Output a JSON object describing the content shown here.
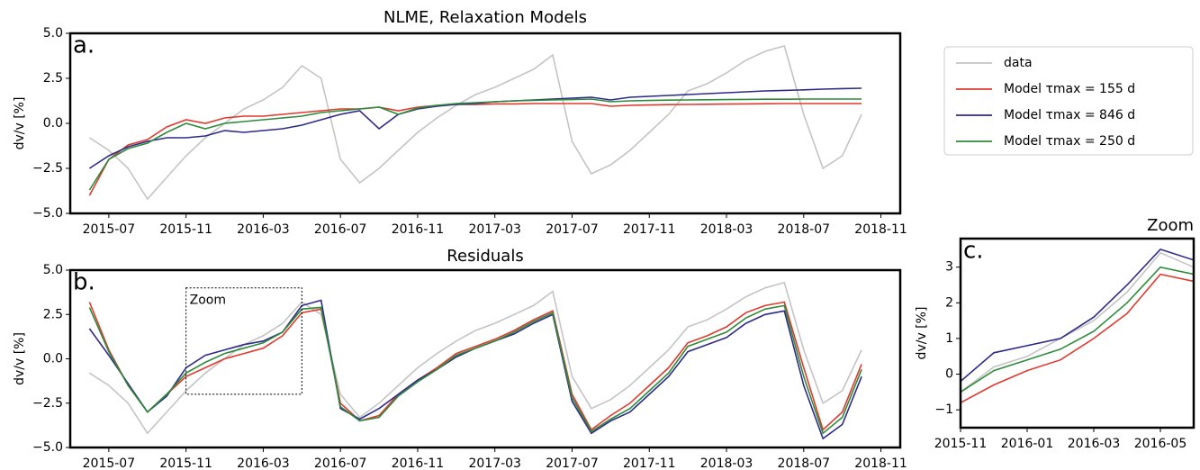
{
  "chart_data": [
    {
      "type": "line",
      "title": "NLME, Relaxation Models",
      "panel_label": "a.",
      "ylabel": "dv/v [%]",
      "x": [
        "2015-06",
        "2015-07",
        "2015-08",
        "2015-09",
        "2015-10",
        "2015-11",
        "2015-12",
        "2016-01",
        "2016-02",
        "2016-03",
        "2016-04",
        "2016-05",
        "2016-06",
        "2016-07",
        "2016-08",
        "2016-09",
        "2016-10",
        "2016-11",
        "2016-12",
        "2017-01",
        "2017-02",
        "2017-03",
        "2017-04",
        "2017-05",
        "2017-06",
        "2017-07",
        "2017-08",
        "2017-09",
        "2017-10",
        "2017-11",
        "2017-12",
        "2018-01",
        "2018-02",
        "2018-03",
        "2018-04",
        "2018-05",
        "2018-06",
        "2018-07",
        "2018-08",
        "2018-09",
        "2018-10"
      ],
      "series": [
        {
          "name": "data",
          "color": "#c4c4c4",
          "values": [
            -0.8,
            -1.5,
            -2.5,
            -4.2,
            -3.0,
            -1.8,
            -0.8,
            0.0,
            0.8,
            1.3,
            2.0,
            3.2,
            2.5,
            -2.0,
            -3.3,
            -2.5,
            -1.5,
            -0.5,
            0.3,
            1.0,
            1.6,
            2.0,
            2.5,
            3.0,
            3.8,
            -1.0,
            -2.8,
            -2.3,
            -1.5,
            -0.5,
            0.5,
            1.8,
            2.2,
            2.8,
            3.5,
            4.0,
            4.3,
            0.5,
            -2.5,
            -1.8,
            0.5
          ]
        },
        {
          "name": "Model τmax =  155 d",
          "color": "#e03a2f",
          "values": [
            -4.0,
            -2.0,
            -1.2,
            -0.9,
            -0.2,
            0.2,
            0.0,
            0.3,
            0.4,
            0.4,
            0.5,
            0.6,
            0.7,
            0.8,
            0.8,
            0.9,
            0.7,
            0.9,
            1.0,
            1.05,
            1.05,
            1.08,
            1.08,
            1.1,
            1.1,
            1.1,
            1.1,
            0.95,
            1.0,
            1.02,
            1.04,
            1.05,
            1.06,
            1.07,
            1.08,
            1.09,
            1.1,
            1.1,
            1.1,
            1.1,
            1.1
          ]
        },
        {
          "name": "Model τmax =  846 d",
          "color": "#2e2a8a",
          "values": [
            -2.5,
            -1.8,
            -1.3,
            -1.0,
            -0.8,
            -0.8,
            -0.7,
            -0.4,
            -0.5,
            -0.4,
            -0.3,
            -0.1,
            0.2,
            0.5,
            0.7,
            -0.3,
            0.5,
            0.8,
            0.95,
            1.05,
            1.1,
            1.2,
            1.25,
            1.3,
            1.35,
            1.4,
            1.45,
            1.3,
            1.45,
            1.5,
            1.55,
            1.6,
            1.65,
            1.7,
            1.75,
            1.8,
            1.83,
            1.86,
            1.9,
            1.93,
            1.95
          ]
        },
        {
          "name": "Model τmax =  250 d",
          "color": "#2e8b3a",
          "values": [
            -3.7,
            -2.0,
            -1.4,
            -1.1,
            -0.5,
            0.0,
            -0.3,
            0.0,
            0.1,
            0.2,
            0.3,
            0.4,
            0.6,
            0.7,
            0.8,
            0.9,
            0.5,
            0.85,
            1.0,
            1.1,
            1.15,
            1.2,
            1.25,
            1.28,
            1.3,
            1.32,
            1.35,
            1.2,
            1.25,
            1.27,
            1.29,
            1.3,
            1.31,
            1.32,
            1.33,
            1.34,
            1.34,
            1.35,
            1.35,
            1.35,
            1.35
          ]
        }
      ],
      "xlim": [
        "2015-05",
        "2018-12"
      ],
      "xticks": [
        "2015-07",
        "2015-11",
        "2016-03",
        "2016-07",
        "2016-11",
        "2017-03",
        "2017-07",
        "2017-11",
        "2018-03",
        "2018-07",
        "2018-11"
      ],
      "ylim": [
        -5,
        5
      ],
      "yticks": [
        {
          "value": -5,
          "label": "−5.0"
        },
        {
          "value": -2.5,
          "label": "−2.5"
        },
        {
          "value": 0,
          "label": "0.0"
        },
        {
          "value": 2.5,
          "label": "2.5"
        },
        {
          "value": 5,
          "label": "5.0"
        }
      ],
      "legend": "right"
    },
    {
      "type": "line",
      "title": "Residuals",
      "panel_label": "b.",
      "ylabel": "dv/v [%]",
      "x": [
        "2015-06",
        "2015-07",
        "2015-08",
        "2015-09",
        "2015-10",
        "2015-11",
        "2015-12",
        "2016-01",
        "2016-02",
        "2016-03",
        "2016-04",
        "2016-05",
        "2016-06",
        "2016-07",
        "2016-08",
        "2016-09",
        "2016-10",
        "2016-11",
        "2016-12",
        "2017-01",
        "2017-02",
        "2017-03",
        "2017-04",
        "2017-05",
        "2017-06",
        "2017-07",
        "2017-08",
        "2017-09",
        "2017-10",
        "2017-11",
        "2017-12",
        "2018-01",
        "2018-02",
        "2018-03",
        "2018-04",
        "2018-05",
        "2018-06",
        "2018-07",
        "2018-08",
        "2018-09",
        "2018-10"
      ],
      "series": [
        {
          "color": "#c4c4c4",
          "values": [
            -0.8,
            -1.5,
            -2.5,
            -4.2,
            -3.0,
            -1.8,
            -0.8,
            0.0,
            0.8,
            1.3,
            2.0,
            3.2,
            2.5,
            -2.0,
            -3.3,
            -2.5,
            -1.5,
            -0.5,
            0.3,
            1.0,
            1.6,
            2.0,
            2.5,
            3.0,
            3.8,
            -1.0,
            -2.8,
            -2.3,
            -1.5,
            -0.5,
            0.5,
            1.8,
            2.2,
            2.8,
            3.5,
            4.0,
            4.3,
            0.5,
            -2.5,
            -1.8,
            0.5
          ]
        },
        {
          "color": "#e03a2f",
          "values": [
            3.2,
            0.5,
            -1.5,
            -3.0,
            -2.0,
            -1.0,
            -0.5,
            0.0,
            0.3,
            0.6,
            1.3,
            2.6,
            2.8,
            -2.5,
            -3.5,
            -3.2,
            -2.0,
            -1.2,
            -0.5,
            0.3,
            0.7,
            1.1,
            1.6,
            2.2,
            2.7,
            -2.0,
            -4.0,
            -3.2,
            -2.5,
            -1.5,
            -0.5,
            0.9,
            1.3,
            1.8,
            2.6,
            3.0,
            3.2,
            -0.5,
            -4.0,
            -3.0,
            -0.3
          ]
        },
        {
          "color": "#2e2a8a",
          "values": [
            1.7,
            0.2,
            -1.4,
            -3.0,
            -2.1,
            -0.5,
            0.2,
            0.5,
            0.8,
            1.0,
            1.5,
            3.0,
            3.3,
            -2.8,
            -3.4,
            -2.8,
            -2.0,
            -1.2,
            -0.6,
            0.1,
            0.6,
            1.0,
            1.4,
            2.0,
            2.5,
            -2.4,
            -4.2,
            -3.5,
            -3.0,
            -2.0,
            -1.0,
            0.4,
            0.8,
            1.2,
            2.0,
            2.5,
            2.7,
            -1.5,
            -4.5,
            -3.7,
            -1.0
          ]
        },
        {
          "color": "#2e8b3a",
          "values": [
            2.9,
            0.4,
            -1.5,
            -3.0,
            -2.0,
            -0.8,
            -0.2,
            0.3,
            0.6,
            0.9,
            1.5,
            2.8,
            2.9,
            -2.7,
            -3.5,
            -3.3,
            -2.1,
            -1.3,
            -0.6,
            0.2,
            0.6,
            1.0,
            1.5,
            2.1,
            2.6,
            -2.2,
            -4.1,
            -3.4,
            -2.8,
            -1.8,
            -0.8,
            0.7,
            1.1,
            1.5,
            2.3,
            2.8,
            3.0,
            -1.0,
            -4.2,
            -3.3,
            -0.6
          ]
        }
      ],
      "xlim": [
        "2015-05",
        "2018-12"
      ],
      "xticks": [
        "2015-07",
        "2015-11",
        "2016-03",
        "2016-07",
        "2016-11",
        "2017-03",
        "2017-07",
        "2017-11",
        "2018-03",
        "2018-07",
        "2018-11"
      ],
      "ylim": [
        -5,
        5
      ],
      "yticks": [
        {
          "value": -5,
          "label": "−5.0"
        },
        {
          "value": -2.5,
          "label": "−2.5"
        },
        {
          "value": 0,
          "label": "0.0"
        },
        {
          "value": 2.5,
          "label": "2.5"
        },
        {
          "value": 5,
          "label": "5.0"
        }
      ],
      "zoom_box": {
        "x0": "2015-11",
        "x1": "2016-05",
        "y0": -2,
        "y1": 4,
        "label": "Zoom"
      }
    },
    {
      "type": "line",
      "title": "Zoom",
      "panel_label": "c.",
      "ylabel": "dv/v [%]",
      "x": [
        "2015-11",
        "2015-12",
        "2016-01",
        "2016-02",
        "2016-03",
        "2016-04",
        "2016-05",
        "2016-06"
      ],
      "series": [
        {
          "color": "#c4c4c4",
          "values": [
            -0.5,
            0.2,
            0.5,
            1.0,
            1.5,
            2.3,
            3.4,
            3.0
          ]
        },
        {
          "color": "#e03a2f",
          "values": [
            -0.8,
            -0.3,
            0.1,
            0.4,
            1.0,
            1.7,
            2.8,
            2.6
          ]
        },
        {
          "color": "#2e2a8a",
          "values": [
            -0.2,
            0.6,
            0.8,
            1.0,
            1.6,
            2.5,
            3.5,
            3.2
          ]
        },
        {
          "color": "#2e8b3a",
          "values": [
            -0.5,
            0.1,
            0.4,
            0.7,
            1.2,
            2.0,
            3.0,
            2.8
          ]
        }
      ],
      "xlim": [
        "2015-11",
        "2016-06"
      ],
      "xticks": [
        "2015-11",
        "2016-01",
        "2016-03",
        "2016-05"
      ],
      "ylim": [
        -1.5,
        3.8
      ],
      "yticks": [
        {
          "value": -1,
          "label": "−1"
        },
        0,
        1,
        2,
        3
      ]
    }
  ]
}
